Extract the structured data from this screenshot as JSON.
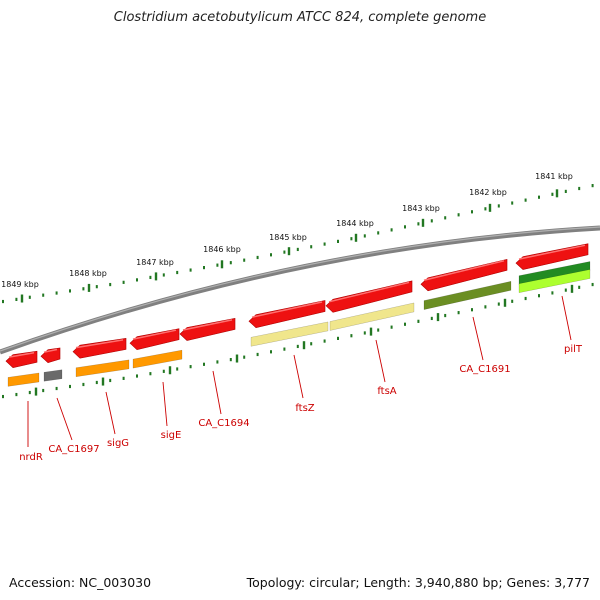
{
  "title": "Clostridium acetobutylicum ATCC 824, complete genome",
  "footer": {
    "accession": "Accession: NC_003030",
    "topology": "Topology: circular; Length: 3,940,880 bp; Genes: 3,777"
  },
  "colors": {
    "backbone": "#808080",
    "tick": "#227722",
    "gene_red": "#ee1111",
    "feature_orange": "#ff9900",
    "feature_gray": "#6a6a6a",
    "feature_pale_yellow": "#f0e68c",
    "feature_olive": "#6b8e23",
    "feature_green": "#228b22",
    "feature_lime": "#adff2f",
    "label_red": "#cc0000"
  },
  "kbp_labels": [
    "1849 kbp",
    "1848 kbp",
    "1847 kbp",
    "1846 kbp",
    "1845 kbp",
    "1844 kbp",
    "1843 kbp",
    "1842 kbp",
    "1841 kbp"
  ],
  "gene_labels": [
    "nrdR",
    "CA_C1697",
    "sigG",
    "sigE",
    "CA_C1694",
    "ftsZ",
    "ftsA",
    "CA_C1691",
    "pilT"
  ]
}
